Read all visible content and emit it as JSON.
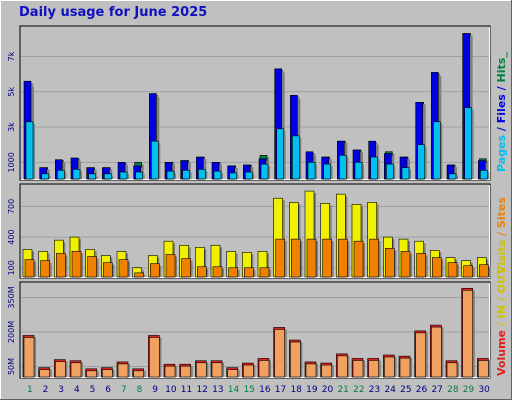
{
  "title": "Daily usage for June 2025",
  "colors": {
    "background": "#c0c0c0",
    "pages": "#0000e0",
    "files": "#00c0f0",
    "hits": "#008040",
    "visits": "#f0f000",
    "sites": "#f08000",
    "volume": "#e02020",
    "volume_in": "#f0a060",
    "weekday_label": "#000080",
    "weekend_label": "#008040"
  },
  "chart_data": [
    {
      "type": "bar",
      "panel": "top",
      "categories": [
        "1",
        "2",
        "3",
        "4",
        "5",
        "6",
        "7",
        "8",
        "9",
        "10",
        "11",
        "12",
        "13",
        "14",
        "15",
        "16",
        "17",
        "18",
        "19",
        "20",
        "21",
        "22",
        "23",
        "24",
        "25",
        "26",
        "27",
        "28",
        "29",
        "30"
      ],
      "y_ticks": [
        "1000",
        "3k",
        "5k",
        "7k"
      ],
      "y_tick_values": [
        1000,
        3000,
        5000,
        7000
      ],
      "ylim": [
        0,
        8500
      ],
      "series": [
        {
          "name": "Hits",
          "values": [
            5400,
            700,
            1100,
            1200,
            700,
            700,
            950,
            1000,
            4800,
            1000,
            1100,
            1300,
            1000,
            800,
            850,
            1400,
            6200,
            4700,
            1500,
            1300,
            2200,
            1700,
            2100,
            1600,
            1300,
            4400,
            6000,
            850,
            8300,
            1200
          ]
        },
        {
          "name": "Pages",
          "values": [
            5600,
            700,
            1150,
            1250,
            700,
            700,
            1000,
            800,
            4900,
            1000,
            1100,
            1300,
            1000,
            800,
            850,
            1200,
            6300,
            4800,
            1600,
            1300,
            2200,
            1700,
            2200,
            1500,
            1300,
            4400,
            6100,
            850,
            8300,
            1100
          ]
        },
        {
          "name": "Files",
          "values": [
            3300,
            350,
            550,
            600,
            350,
            350,
            450,
            450,
            2200,
            500,
            550,
            600,
            500,
            400,
            450,
            900,
            2900,
            2500,
            1000,
            900,
            1400,
            1000,
            1300,
            900,
            700,
            2000,
            3300,
            350,
            4100,
            550
          ]
        }
      ]
    },
    {
      "type": "bar",
      "panel": "middle",
      "categories": [
        "1",
        "2",
        "3",
        "4",
        "5",
        "6",
        "7",
        "8",
        "9",
        "10",
        "11",
        "12",
        "13",
        "14",
        "15",
        "16",
        "17",
        "18",
        "19",
        "20",
        "21",
        "22",
        "23",
        "24",
        "25",
        "26",
        "27",
        "28",
        "29",
        "30"
      ],
      "y_ticks": [
        "100",
        "400",
        "700"
      ],
      "y_tick_values": [
        100,
        400,
        700
      ],
      "ylim": [
        0,
        880
      ],
      "series": [
        {
          "name": "Visits",
          "values": [
            280,
            260,
            370,
            400,
            280,
            220,
            260,
            100,
            220,
            360,
            320,
            300,
            320,
            260,
            250,
            260,
            780,
            740,
            850,
            730,
            820,
            720,
            740,
            400,
            380,
            360,
            270,
            200,
            170,
            200
          ]
        },
        {
          "name": "Sites",
          "values": [
            180,
            170,
            240,
            260,
            210,
            150,
            180,
            50,
            140,
            230,
            190,
            110,
            110,
            100,
            100,
            100,
            380,
            380,
            380,
            380,
            380,
            360,
            380,
            290,
            260,
            240,
            200,
            150,
            120,
            130
          ]
        }
      ]
    },
    {
      "type": "bar",
      "panel": "bottom",
      "categories": [
        "1",
        "2",
        "3",
        "4",
        "5",
        "6",
        "7",
        "8",
        "9",
        "10",
        "11",
        "12",
        "13",
        "14",
        "15",
        "16",
        "17",
        "18",
        "19",
        "20",
        "21",
        "22",
        "23",
        "24",
        "25",
        "26",
        "27",
        "28",
        "29",
        "30"
      ],
      "x_tick_colors": [
        "weekend",
        "weekday",
        "weekday",
        "weekday",
        "weekday",
        "weekday",
        "weekend",
        "weekend",
        "weekday",
        "weekday",
        "weekday",
        "weekday",
        "weekday",
        "weekend",
        "weekend",
        "weekday",
        "weekday",
        "weekday",
        "weekday",
        "weekday",
        "weekend",
        "weekend",
        "weekday",
        "weekday",
        "weekday",
        "weekday",
        "weekday",
        "weekend",
        "weekend",
        "weekday"
      ],
      "y_ticks": [
        "50M",
        "200M",
        "350M"
      ],
      "y_tick_values": [
        50,
        200,
        350
      ],
      "ylim": [
        0,
        400
      ],
      "series": [
        {
          "name": "Volume",
          "values": [
            185,
            45,
            80,
            75,
            40,
            45,
            70,
            40,
            185,
            60,
            60,
            75,
            75,
            45,
            65,
            85,
            220,
            165,
            70,
            65,
            105,
            85,
            85,
            100,
            95,
            205,
            230,
            75,
            390,
            85
          ]
        }
      ]
    }
  ],
  "side_labels": {
    "top": [
      {
        "text": "Pages",
        "color": "#00c0f0"
      },
      {
        "text": " / ",
        "color": "#0000e0"
      },
      {
        "text": "Files",
        "color": "#0000e0"
      },
      {
        "text": " / ",
        "color": "#0000e0"
      },
      {
        "text": "Hits",
        "color": "#008040"
      },
      {
        "text": "_",
        "color": "#008040"
      }
    ],
    "middle": [
      {
        "text": "Visits",
        "color": "#d0c000"
      },
      {
        "text": " / ",
        "color": "#f08000"
      },
      {
        "text": "Sites",
        "color": "#f08000"
      }
    ],
    "bottom": [
      {
        "text": "Volume",
        "color": "#e02020"
      },
      {
        "text": " / ",
        "color": "#d0c000"
      },
      {
        "text": "IN",
        "color": "#d0c000"
      },
      {
        "text": " / ",
        "color": "#d0c000"
      },
      {
        "text": "OUT",
        "color": "#d0c000"
      }
    ]
  }
}
